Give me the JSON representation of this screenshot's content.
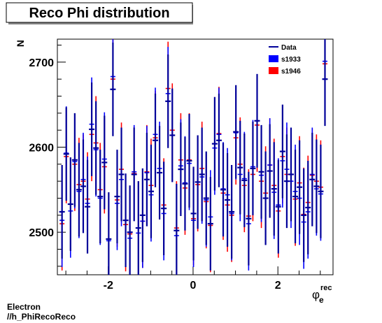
{
  "chart_data": {
    "type": "scatter",
    "title": "Reco Phi distribution",
    "ylabel": "N",
    "xlabel": "φ",
    "xlabel_sup": "rec",
    "xlabel_sub": "e",
    "xlim": [
      -3.2,
      3.3
    ],
    "ylim": [
      2450,
      2727
    ],
    "xticks": [
      -2,
      0,
      2
    ],
    "xtick_labels": [
      "-2",
      "0",
      "2"
    ],
    "yticks": [
      2500,
      2600,
      2700
    ],
    "ytick_labels": [
      "2500",
      "2600",
      "2700"
    ],
    "grid": false,
    "legend_position": "top-right",
    "legend": [
      {
        "label": "Data",
        "color": "#000099",
        "marker": "line"
      },
      {
        "label": "s1933",
        "color": "#0000ff",
        "marker": "box"
      },
      {
        "label": "s1946",
        "color": "#ff0000",
        "marker": "box"
      }
    ],
    "error": 55,
    "x": [
      -3.09,
      -2.99,
      -2.89,
      -2.79,
      -2.69,
      -2.59,
      -2.49,
      -2.39,
      -2.29,
      -2.19,
      -2.09,
      -1.99,
      -1.89,
      -1.79,
      -1.69,
      -1.59,
      -1.49,
      -1.39,
      -1.29,
      -1.19,
      -1.09,
      -0.99,
      -0.89,
      -0.79,
      -0.69,
      -0.59,
      -0.49,
      -0.39,
      -0.29,
      -0.19,
      -0.09,
      0.01,
      0.11,
      0.21,
      0.31,
      0.41,
      0.51,
      0.61,
      0.71,
      0.81,
      0.91,
      1.01,
      1.11,
      1.21,
      1.31,
      1.41,
      1.51,
      1.61,
      1.71,
      1.81,
      1.91,
      2.01,
      2.11,
      2.21,
      2.31,
      2.41,
      2.51,
      2.61,
      2.71,
      2.81,
      2.91,
      3.01,
      3.11
    ],
    "series": [
      {
        "name": "Data",
        "color": "#000099",
        "values": [
          2524,
          2592,
          2533,
          2585,
          2550,
          2554,
          2530,
          2621,
          2599,
          2542,
          2582,
          2492,
          2668,
          2542,
          2568,
          2514,
          2500,
          2568,
          2505,
          2520,
          2562,
          2548,
          2608,
          2570,
          2528,
          2654,
          2614,
          2502,
          2574,
          2557,
          2584,
          2522,
          2559,
          2568,
          2540,
          2510,
          2604,
          2608,
          2550,
          2538,
          2524,
          2618,
          2576,
          2561,
          2516,
          2575,
          2631,
          2571,
          2540,
          2572,
          2551,
          2530,
          2595,
          2560,
          2568,
          2542,
          2553,
          2520,
          2529,
          2562,
          2554,
          2548,
          2680
        ]
      },
      {
        "name": "s1933",
        "color": "#0000ff",
        "values": [
          2514,
          2593,
          2525,
          2583,
          2548,
          2562,
          2534,
          2627,
          2597,
          2540,
          2586,
          2490,
          2683,
          2534,
          2562,
          2514,
          2493,
          2571,
          2499,
          2513,
          2570,
          2544,
          2615,
          2575,
          2522,
          2663,
          2614,
          2496,
          2578,
          2558,
          2581,
          2514,
          2559,
          2565,
          2538,
          2518,
          2599,
          2615,
          2551,
          2544,
          2522,
          2617,
          2568,
          2563,
          2510,
          2577,
          2631,
          2567,
          2540,
          2579,
          2547,
          2532,
          2584,
          2574,
          2560,
          2548,
          2540,
          2512,
          2524,
          2568,
          2551,
          2545,
          2701
        ]
      },
      {
        "name": "s1946",
        "color": "#ff0000",
        "values": [
          2510,
          2589,
          2533,
          2580,
          2556,
          2560,
          2539,
          2615,
          2605,
          2550,
          2577,
          2492,
          2680,
          2538,
          2574,
          2509,
          2498,
          2569,
          2505,
          2513,
          2571,
          2555,
          2611,
          2570,
          2532,
          2669,
          2620,
          2505,
          2585,
          2552,
          2585,
          2516,
          2556,
          2575,
          2536,
          2508,
          2604,
          2616,
          2546,
          2532,
          2520,
          2611,
          2580,
          2555,
          2519,
          2568,
          2626,
          2560,
          2546,
          2579,
          2555,
          2525,
          2589,
          2568,
          2568,
          2539,
          2558,
          2521,
          2535,
          2567,
          2560,
          2553,
          2698
        ]
      }
    ]
  },
  "footer": {
    "line1": "Electron",
    "line2": "//h_PhiRecoReco"
  }
}
